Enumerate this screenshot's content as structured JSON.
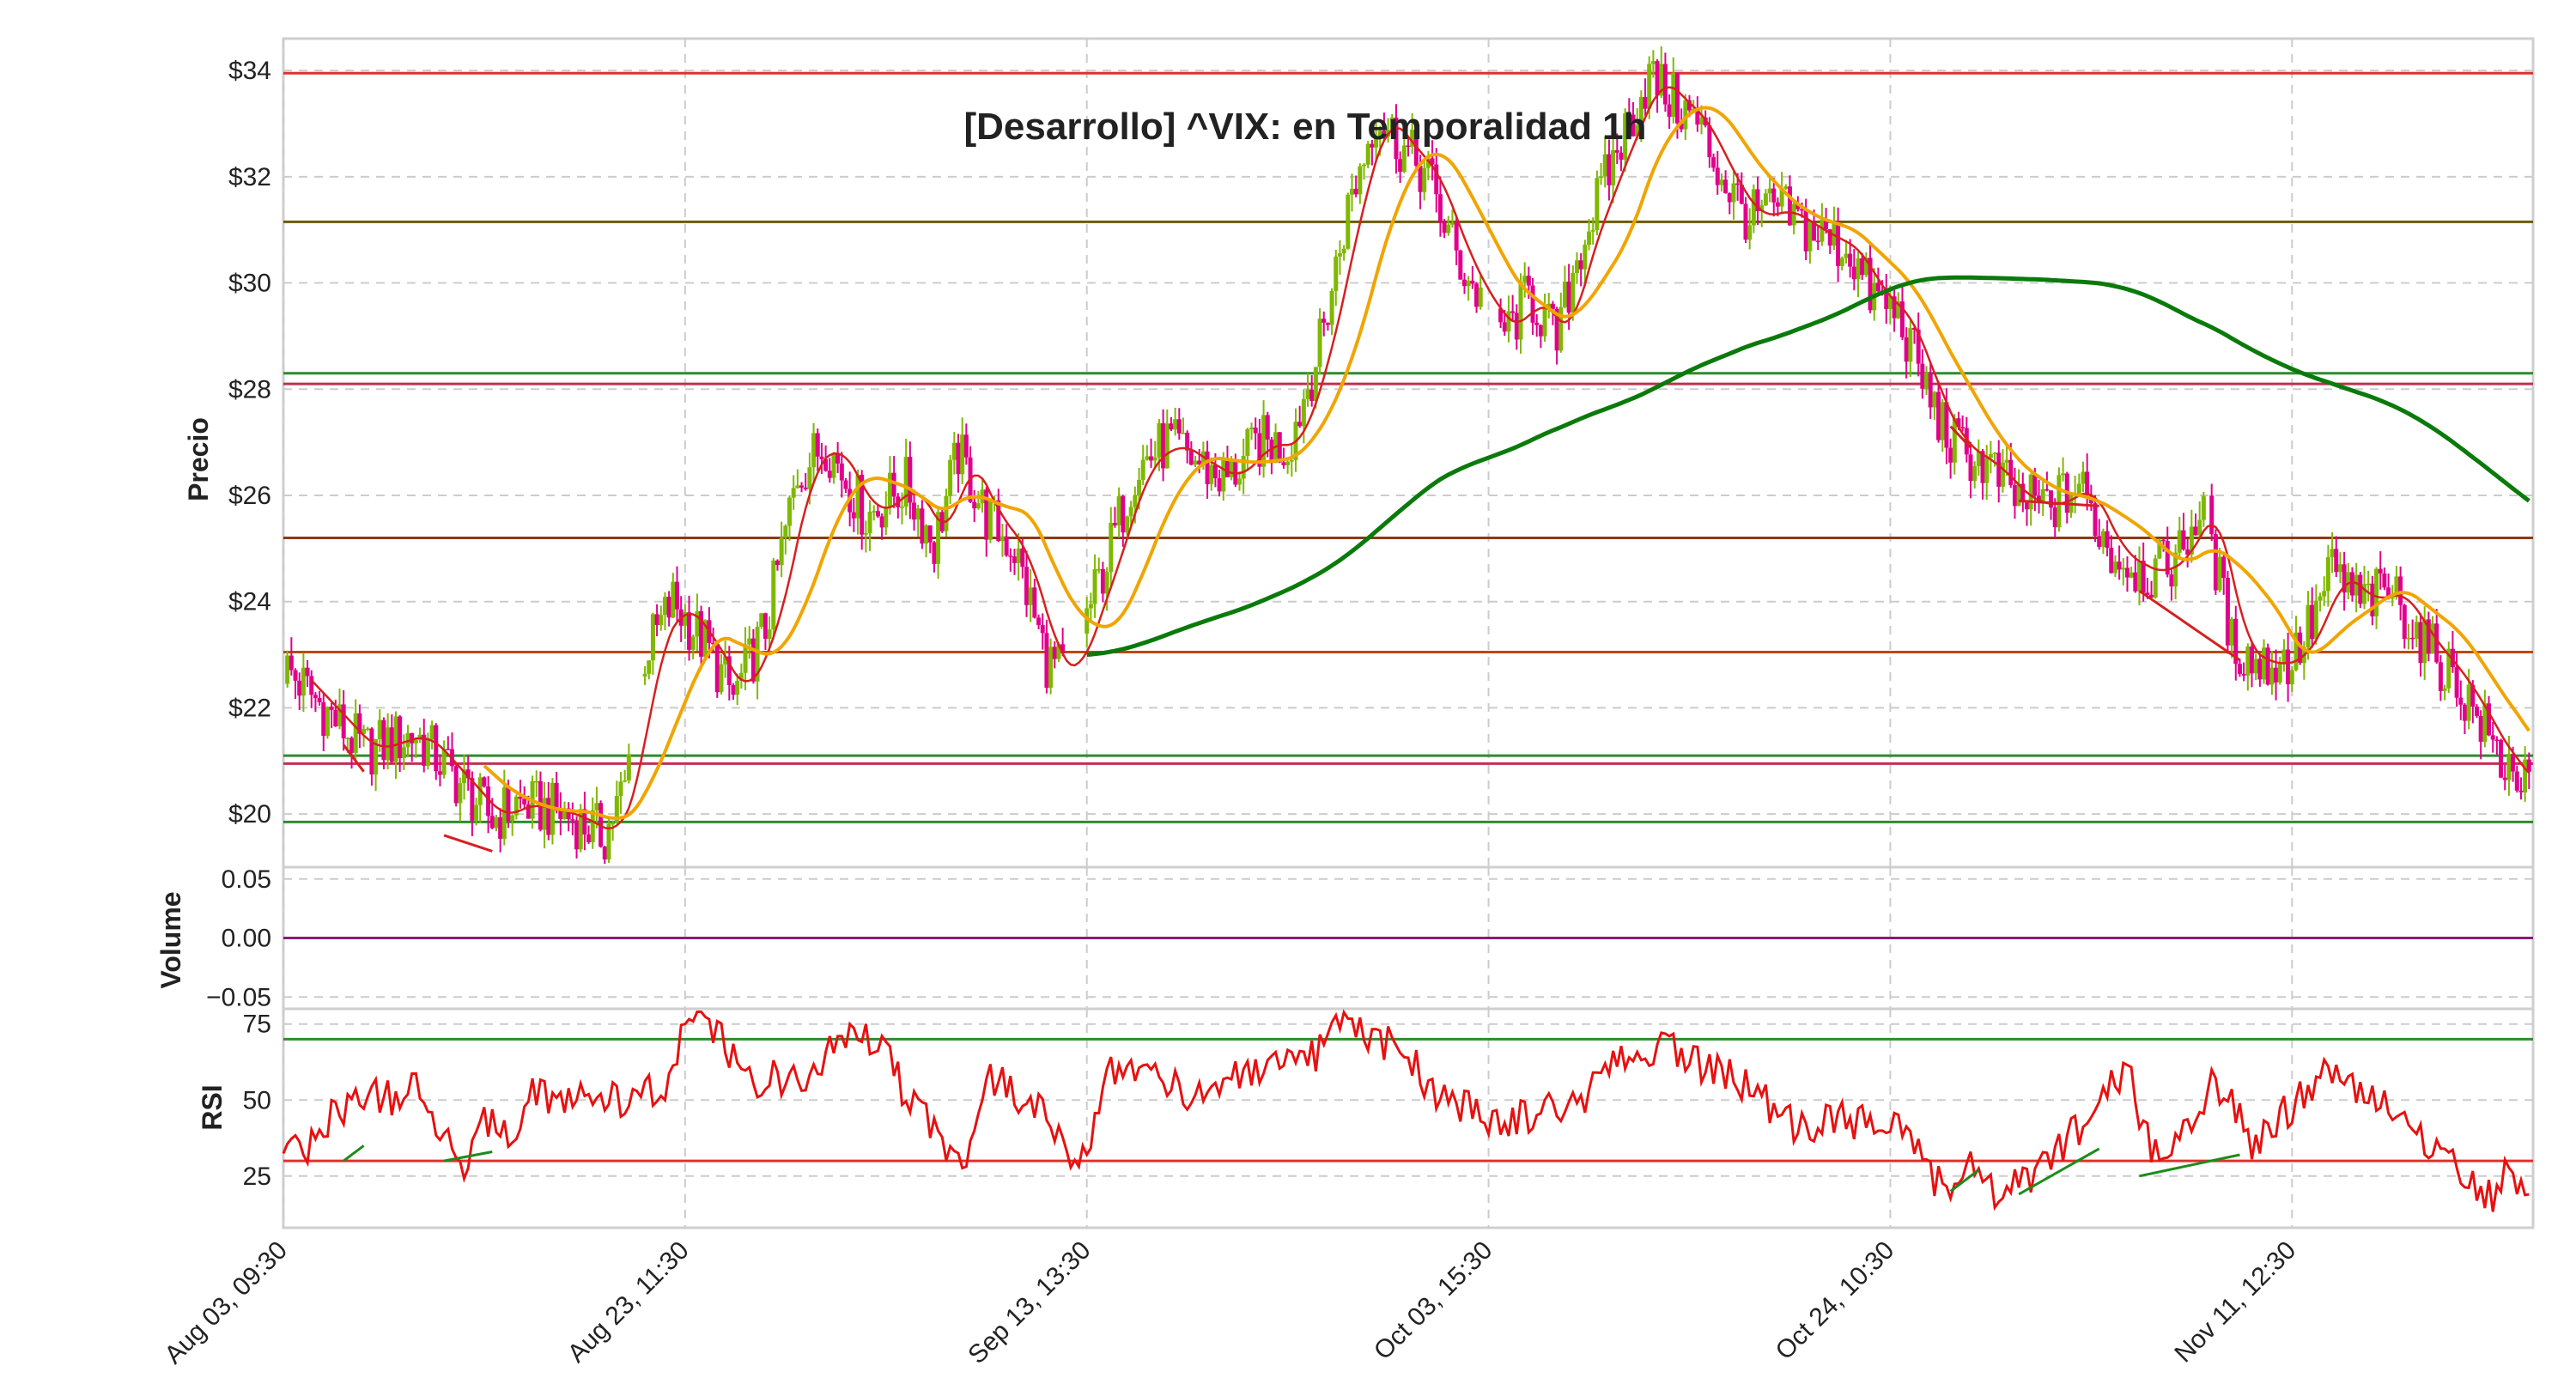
{
  "chart_data": {
    "type": "candlestick",
    "title": "[Desarrollo] ^VIX: en Temporalidad 1h",
    "x_tick_labels": [
      "Aug 03, 09:30",
      "Aug 23, 11:30",
      "Sep 13, 13:30",
      "Oct 03, 15:30",
      "Oct 24, 10:30",
      "Nov 11, 12:30"
    ],
    "x_tick_positions": [
      0,
      100,
      200,
      300,
      400,
      500
    ],
    "x_range": [
      0,
      560
    ],
    "panels": {
      "price": {
        "ylabel": "Precio",
        "ylim": [
          19.0,
          34.6
        ],
        "yticks": [
          20,
          22,
          24,
          26,
          28,
          30,
          32,
          34
        ],
        "ytick_labels": [
          "$20",
          "$22",
          "$24",
          "$26",
          "$28",
          "$30",
          "$32",
          "$34"
        ],
        "close_anchors": [
          [
            0,
            22.8
          ],
          [
            10,
            22.0
          ],
          [
            20,
            21.2
          ],
          [
            33,
            21.5
          ],
          [
            45,
            20.5
          ],
          [
            52,
            19.9
          ],
          [
            58,
            20.2
          ],
          [
            70,
            20.0
          ],
          [
            80,
            19.6
          ],
          [
            85,
            20.5
          ],
          [
            90,
            23.0
          ],
          [
            97,
            24.0
          ],
          [
            105,
            23.2
          ],
          [
            112,
            22.2
          ],
          [
            120,
            23.5
          ],
          [
            128,
            26.4
          ],
          [
            135,
            27.0
          ],
          [
            145,
            25.6
          ],
          [
            155,
            26.2
          ],
          [
            162,
            25.1
          ],
          [
            168,
            26.8
          ],
          [
            175,
            25.6
          ],
          [
            182,
            25.0
          ],
          [
            190,
            22.9
          ],
          [
            195,
            22.6
          ],
          [
            198,
            23.3
          ],
          [
            205,
            24.8
          ],
          [
            212,
            26.5
          ],
          [
            220,
            27.0
          ],
          [
            228,
            26.6
          ],
          [
            235,
            26.3
          ],
          [
            243,
            27.0
          ],
          [
            250,
            26.9
          ],
          [
            258,
            28.8
          ],
          [
            265,
            31.4
          ],
          [
            272,
            33.2
          ],
          [
            278,
            32.6
          ],
          [
            285,
            32.0
          ],
          [
            292,
            30.5
          ],
          [
            300,
            29.4
          ],
          [
            305,
            29.1
          ],
          [
            310,
            29.8
          ],
          [
            317,
            28.9
          ],
          [
            322,
            30.5
          ],
          [
            332,
            32.5
          ],
          [
            340,
            33.9
          ],
          [
            345,
            33.5
          ],
          [
            352,
            33.0
          ],
          [
            358,
            32.0
          ],
          [
            365,
            31.2
          ],
          [
            372,
            31.4
          ],
          [
            380,
            31.0
          ],
          [
            390,
            30.6
          ],
          [
            395,
            29.8
          ],
          [
            402,
            29.4
          ],
          [
            410,
            27.8
          ],
          [
            415,
            27.0
          ],
          [
            425,
            26.5
          ],
          [
            432,
            25.9
          ],
          [
            440,
            25.8
          ],
          [
            447,
            26.2
          ],
          [
            455,
            24.9
          ],
          [
            465,
            24.5
          ],
          [
            472,
            24.9
          ],
          [
            478,
            25.9
          ],
          [
            485,
            23.2
          ],
          [
            492,
            22.8
          ],
          [
            500,
            22.9
          ],
          [
            505,
            23.6
          ],
          [
            510,
            24.6
          ],
          [
            517,
            24.0
          ],
          [
            525,
            24.2
          ],
          [
            532,
            23.3
          ],
          [
            540,
            22.6
          ],
          [
            548,
            21.6
          ],
          [
            552,
            21.0
          ],
          [
            555,
            20.9
          ],
          [
            558,
            20.5
          ]
        ],
        "horizontal_levels": [
          {
            "value": 33.95,
            "color": "#e03030"
          },
          {
            "value": 31.15,
            "color": "#6b5a00"
          },
          {
            "value": 28.3,
            "color": "#2e8b2e"
          },
          {
            "value": 28.1,
            "color": "#c03050"
          },
          {
            "value": 25.2,
            "color": "#8b3a10"
          },
          {
            "value": 23.05,
            "color": "#b84a10"
          },
          {
            "value": 21.1,
            "color": "#2e8b2e"
          },
          {
            "value": 20.95,
            "color": "#c03050"
          },
          {
            "value": 19.85,
            "color": "#2e8b2e"
          }
        ],
        "moving_averages": [
          {
            "color": "#d62020",
            "period": 7
          },
          {
            "color": "#f0a500",
            "period": 21,
            "start": 50
          },
          {
            "color": "#0a7a0a",
            "period": 200,
            "start": 200
          }
        ],
        "trend_segments": [
          {
            "color": "#d62020",
            "points": [
              [
                15,
                21.3
              ],
              [
                20,
                20.8
              ]
            ]
          },
          {
            "color": "#d62020",
            "points": [
              [
                40,
                19.6
              ],
              [
                52,
                19.3
              ]
            ]
          },
          {
            "color": "#d62020",
            "points": [
              [
                415,
                27.3
              ],
              [
                420,
                26.9
              ]
            ]
          },
          {
            "color": "#d62020",
            "points": [
              [
                432,
                25.9
              ],
              [
                452,
                25.8
              ]
            ]
          },
          {
            "color": "#d62020",
            "points": [
              [
                462,
                24.2
              ],
              [
                487,
                22.9
              ]
            ]
          }
        ]
      },
      "volume": {
        "ylabel": "Volume",
        "ylim": [
          -0.06,
          0.06
        ],
        "yticks": [
          0.05,
          0.0,
          -0.05
        ],
        "ytick_labels": [
          "0.05",
          "0.00",
          "−0.05"
        ]
      },
      "rsi": {
        "ylabel": "RSI",
        "ylim": [
          8,
          80
        ],
        "yticks": [
          75,
          50,
          25
        ],
        "ytick_labels": [
          "75",
          "50",
          "25"
        ],
        "upper_level": 70,
        "lower_level": 30,
        "line_color": "#e81010",
        "anchors": [
          [
            0,
            35
          ],
          [
            5,
            32
          ],
          [
            12,
            45
          ],
          [
            20,
            52
          ],
          [
            28,
            50
          ],
          [
            32,
            55
          ],
          [
            40,
            38
          ],
          [
            45,
            30
          ],
          [
            48,
            40
          ],
          [
            52,
            45
          ],
          [
            56,
            35
          ],
          [
            62,
            55
          ],
          [
            70,
            48
          ],
          [
            78,
            52
          ],
          [
            86,
            48
          ],
          [
            90,
            52
          ],
          [
            96,
            55
          ],
          [
            100,
            75
          ],
          [
            105,
            78
          ],
          [
            110,
            68
          ],
          [
            115,
            55
          ],
          [
            122,
            58
          ],
          [
            130,
            55
          ],
          [
            140,
            72
          ],
          [
            145,
            70
          ],
          [
            150,
            72
          ],
          [
            155,
            50
          ],
          [
            160,
            45
          ],
          [
            165,
            35
          ],
          [
            170,
            30
          ],
          [
            175,
            58
          ],
          [
            180,
            55
          ],
          [
            185,
            48
          ],
          [
            190,
            45
          ],
          [
            195,
            35
          ],
          [
            200,
            28
          ],
          [
            205,
            60
          ],
          [
            210,
            62
          ],
          [
            218,
            58
          ],
          [
            225,
            52
          ],
          [
            232,
            55
          ],
          [
            240,
            58
          ],
          [
            248,
            60
          ],
          [
            255,
            62
          ],
          [
            260,
            70
          ],
          [
            265,
            75
          ],
          [
            270,
            70
          ],
          [
            278,
            68
          ],
          [
            285,
            55
          ],
          [
            290,
            50
          ],
          [
            295,
            48
          ],
          [
            302,
            42
          ],
          [
            310,
            45
          ],
          [
            318,
            48
          ],
          [
            325,
            52
          ],
          [
            332,
            62
          ],
          [
            338,
            65
          ],
          [
            345,
            68
          ],
          [
            352,
            62
          ],
          [
            360,
            58
          ],
          [
            367,
            52
          ],
          [
            372,
            45
          ],
          [
            378,
            40
          ],
          [
            385,
            45
          ],
          [
            392,
            42
          ],
          [
            400,
            45
          ],
          [
            405,
            40
          ],
          [
            410,
            25
          ],
          [
            415,
            22
          ],
          [
            420,
            28
          ],
          [
            425,
            20
          ],
          [
            430,
            22
          ],
          [
            435,
            25
          ],
          [
            440,
            32
          ],
          [
            445,
            38
          ],
          [
            450,
            42
          ],
          [
            455,
            58
          ],
          [
            460,
            55
          ],
          [
            465,
            32
          ],
          [
            470,
            38
          ],
          [
            475,
            42
          ],
          [
            480,
            55
          ],
          [
            485,
            52
          ],
          [
            490,
            32
          ],
          [
            495,
            42
          ],
          [
            500,
            48
          ],
          [
            505,
            55
          ],
          [
            510,
            60
          ],
          [
            515,
            55
          ],
          [
            520,
            52
          ],
          [
            525,
            45
          ],
          [
            530,
            40
          ],
          [
            535,
            35
          ],
          [
            540,
            30
          ],
          [
            545,
            22
          ],
          [
            550,
            18
          ],
          [
            553,
            28
          ],
          [
            556,
            22
          ],
          [
            559,
            20
          ]
        ],
        "trend_segments": [
          {
            "color": "#1a8c1a",
            "points": [
              [
                15,
                30
              ],
              [
                20,
                35
              ]
            ]
          },
          {
            "color": "#1a8c1a",
            "points": [
              [
                40,
                30
              ],
              [
                52,
                33
              ]
            ]
          },
          {
            "color": "#1a8c1a",
            "points": [
              [
                415,
                20
              ],
              [
                422,
                27
              ]
            ]
          },
          {
            "color": "#1a8c1a",
            "points": [
              [
                432,
                19
              ],
              [
                452,
                34
              ]
            ]
          },
          {
            "color": "#1a8c1a",
            "points": [
              [
                462,
                25
              ],
              [
                487,
                32
              ]
            ]
          }
        ]
      }
    },
    "colors": {
      "candle_up": "#7fb800",
      "candle_down": "#e0008c",
      "grid": "#cccccc",
      "frame": "#cfcfcf"
    }
  }
}
